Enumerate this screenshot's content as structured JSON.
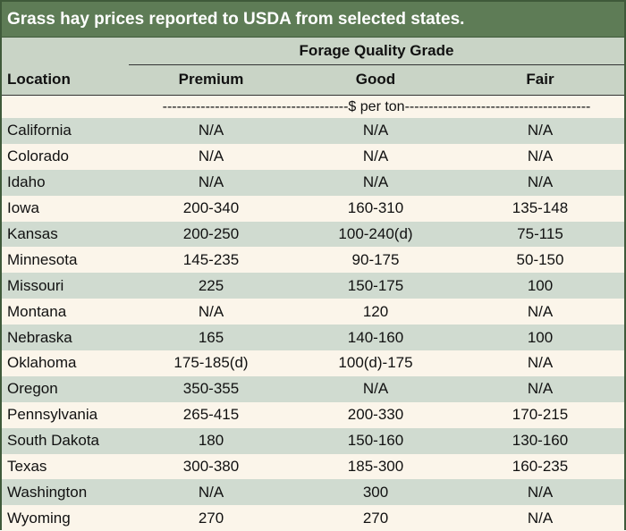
{
  "title": "Grass hay prices reported to USDA from selected states.",
  "header": {
    "group": "Forage Quality Grade",
    "location": "Location",
    "columns": [
      "Premium",
      "Good",
      "Fair"
    ]
  },
  "units": "---------------------------------------$ per ton---------------------------------------",
  "rows": [
    {
      "location": "California",
      "premium": "N/A",
      "good": "N/A",
      "fair": "N/A"
    },
    {
      "location": "Colorado",
      "premium": "N/A",
      "good": "N/A",
      "fair": "N/A"
    },
    {
      "location": "Idaho",
      "premium": "N/A",
      "good": "N/A",
      "fair": "N/A"
    },
    {
      "location": "Iowa",
      "premium": "200-340",
      "good": "160-310",
      "fair": "135-148"
    },
    {
      "location": "Kansas",
      "premium": "200-250",
      "good": "100-240(d)",
      "fair": "75-115"
    },
    {
      "location": "Minnesota",
      "premium": "145-235",
      "good": "90-175",
      "fair": "50-150"
    },
    {
      "location": "Missouri",
      "premium": "225",
      "good": "150-175",
      "fair": "100"
    },
    {
      "location": "Montana",
      "premium": "N/A",
      "good": "120",
      "fair": "N/A"
    },
    {
      "location": "Nebraska",
      "premium": "165",
      "good": "140-160",
      "fair": "100"
    },
    {
      "location": "Oklahoma",
      "premium": "175-185(d)",
      "good": "100(d)-175",
      "fair": "N/A"
    },
    {
      "location": "Oregon",
      "premium": "350-355",
      "good": "N/A",
      "fair": "N/A"
    },
    {
      "location": "Pennsylvania",
      "premium": "265-415",
      "good": "200-330",
      "fair": "170-215"
    },
    {
      "location": "South Dakota",
      "premium": "180",
      "good": "150-160",
      "fair": "130-160"
    },
    {
      "location": "Texas",
      "premium": "300-380",
      "good": "185-300",
      "fair": "160-235"
    },
    {
      "location": "Washington",
      "premium": "N/A",
      "good": "300",
      "fair": "N/A"
    },
    {
      "location": "Wyoming",
      "premium": "270",
      "good": "270",
      "fair": "N/A"
    }
  ]
}
